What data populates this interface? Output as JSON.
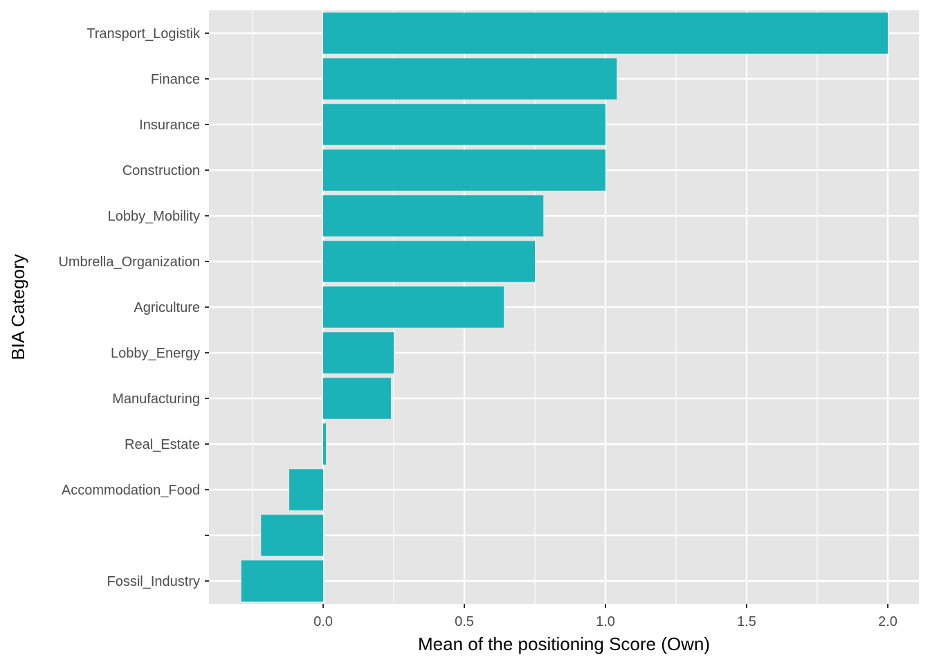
{
  "chart_data": {
    "type": "bar",
    "orientation": "horizontal",
    "categories": [
      "Transport_Logistik",
      "Finance",
      "Insurance",
      "Construction",
      "Lobby_Mobility",
      "Umbrella_Organization",
      "Agriculture",
      "Lobby_Energy",
      "Manufacturing",
      "Real_Estate",
      "Accommodation_Food",
      "",
      "Fossil_Industry"
    ],
    "values": [
      2.0,
      1.04,
      1.0,
      1.0,
      0.78,
      0.75,
      0.64,
      0.25,
      0.24,
      0.01,
      -0.12,
      -0.22,
      -0.29
    ],
    "xlabel": "Mean of the positioning Score (Own)",
    "ylabel": "BIA Category",
    "xlim": [
      -0.4,
      2.1
    ],
    "x_ticks": [
      0.0,
      0.5,
      1.0,
      1.5,
      2.0
    ],
    "x_tick_labels": [
      "0.0",
      "0.5",
      "1.0",
      "1.5",
      "2.0"
    ],
    "grid": true,
    "colors": {
      "bar": "#1BB3B7",
      "panel_background": "#E5E5E5",
      "grid_major": "#FFFFFF",
      "tick_text": "#4D4D4D"
    }
  }
}
